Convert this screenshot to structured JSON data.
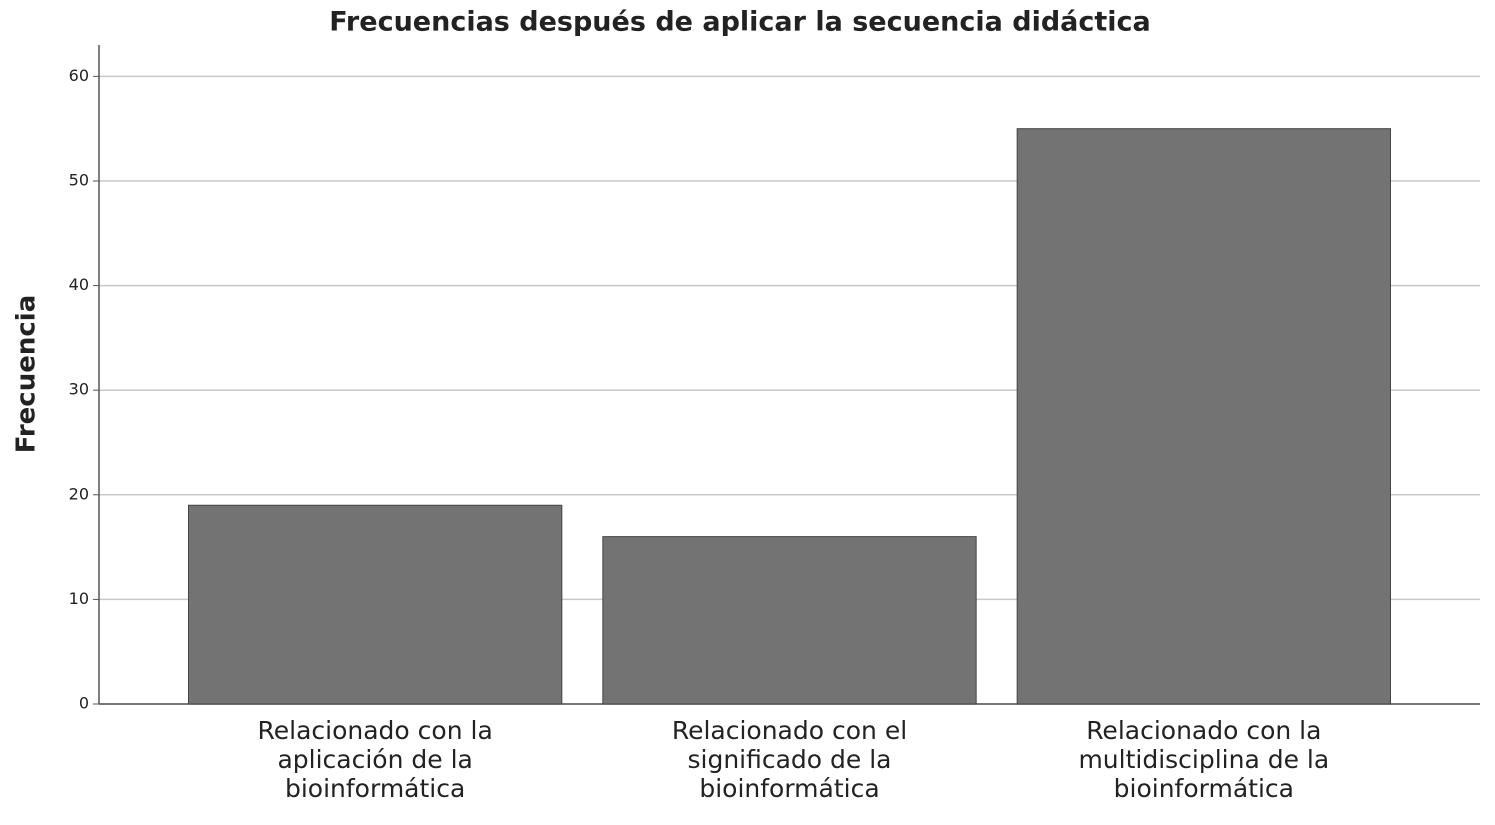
{
  "chart_data": {
    "type": "bar",
    "title": "Frecuencias después de aplicar la secuencia didáctica",
    "y_label": "Frecuencia",
    "categories": [
      "Relacionado con la aplicación de la bioinformática",
      "Relacionado con el significado de la bioinformática",
      "Relacionado con la multidisciplina de la bioinformática"
    ],
    "values": [
      19,
      16,
      55
    ],
    "color": "#737373",
    "ylim": [
      0,
      63
    ],
    "yticks": [
      0,
      10,
      20,
      30,
      40,
      50,
      60
    ],
    "grid": true
  }
}
